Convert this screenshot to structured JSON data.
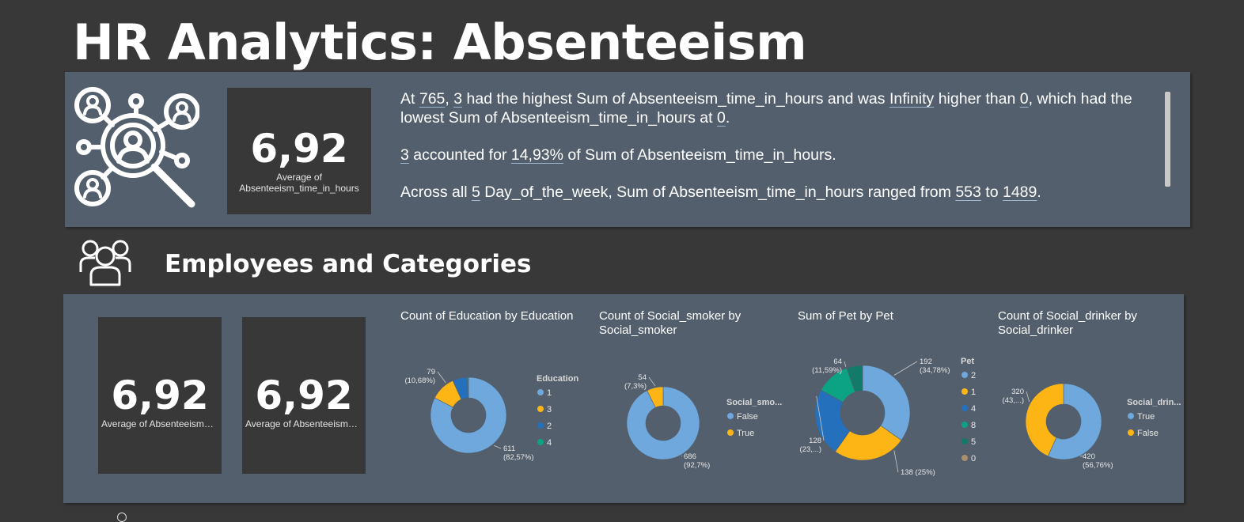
{
  "title": "HR Analytics: Absenteeism",
  "section_title": "Employees and Categories",
  "kpi_top": {
    "value": "6,92",
    "label": "Average of Absenteeism_time_in_hours"
  },
  "kpi_bottom": [
    {
      "value": "6,92",
      "label": "Average of Absenteeism_time_in..."
    },
    {
      "value": "6,92",
      "label": "Average of Absenteeism_time_in..."
    }
  ],
  "insights": {
    "p1": {
      "s1": "At ",
      "v1": "765",
      "s2": ", ",
      "v2": "3",
      "s3": " had the highest Sum of Absenteeism_time_in_hours and was ",
      "v3": "Infinity",
      "s4": " higher than ",
      "v4": "0",
      "s5": ", which had the lowest Sum of Absenteeism_time_in_hours at ",
      "v5": "0",
      "s6": "."
    },
    "p2": {
      "v1": "3",
      "s1": " accounted for ",
      "v2": "14,93%",
      "s2": " of Sum of Absenteeism_time_in_hours."
    },
    "p3": {
      "s1": "Across all ",
      "v1": "5",
      "s2": " Day_of_the_week, Sum of Absenteeism_time_in_hours ranged from ",
      "v2": "553",
      "s3": " to ",
      "v3": "1489",
      "s4": "."
    }
  },
  "icons": [
    "network-search-people-icon",
    "employees-group-icon"
  ],
  "colors": {
    "background": "#383838",
    "panel": "#535f6c",
    "kpi": "#383838"
  },
  "chart_data": [
    {
      "type": "donut",
      "title": "Count of Education by Education",
      "legend_title": "Education",
      "categories": [
        "1",
        "3",
        "2",
        "4"
      ],
      "values": [
        611,
        79,
        46,
        4
      ],
      "colors": [
        "#6ea8dc",
        "#fdb515",
        "#2470bd",
        "#0ba383"
      ],
      "data_labels": [
        {
          "line1": "611",
          "line2": "(82,57%)"
        },
        {
          "line1": "79",
          "line2": "(10,68%)"
        }
      ]
    },
    {
      "type": "donut",
      "title": "Count of Social_smoker by Social_smoker",
      "legend_title": "Social_smo...",
      "categories": [
        "False",
        "True"
      ],
      "values": [
        686,
        54
      ],
      "colors": [
        "#6ea8dc",
        "#fdb515"
      ],
      "data_labels": [
        {
          "line1": "686",
          "line2": "(92,7%)"
        },
        {
          "line1": "54",
          "line2": "(7,3%)"
        }
      ]
    },
    {
      "type": "donut",
      "title": "Sum of Pet by Pet",
      "legend_title": "Pet",
      "categories": [
        "2",
        "1",
        "4",
        "8",
        "5",
        "0"
      ],
      "values": [
        192,
        138,
        128,
        64,
        30,
        0
      ],
      "colors": [
        "#6ea8dc",
        "#fdb515",
        "#2470bd",
        "#0ba383",
        "#137a69",
        "#a8906c"
      ],
      "data_labels": [
        {
          "line1": "192",
          "line2": "(34,78%)"
        },
        {
          "line1": "138 (25%)",
          "line2": ""
        },
        {
          "line1": "128",
          "line2": "(23,...)"
        },
        {
          "line1": "64",
          "line2": "(11,59%)"
        }
      ]
    },
    {
      "type": "donut",
      "title": "Count of Social_drinker by Social_drinker",
      "legend_title": "Social_drin...",
      "categories": [
        "True",
        "False"
      ],
      "values": [
        420,
        320
      ],
      "colors": [
        "#6ea8dc",
        "#fdb515"
      ],
      "data_labels": [
        {
          "line1": "420",
          "line2": "(56,76%)"
        },
        {
          "line1": "320",
          "line2": "(43,...)"
        }
      ]
    }
  ]
}
